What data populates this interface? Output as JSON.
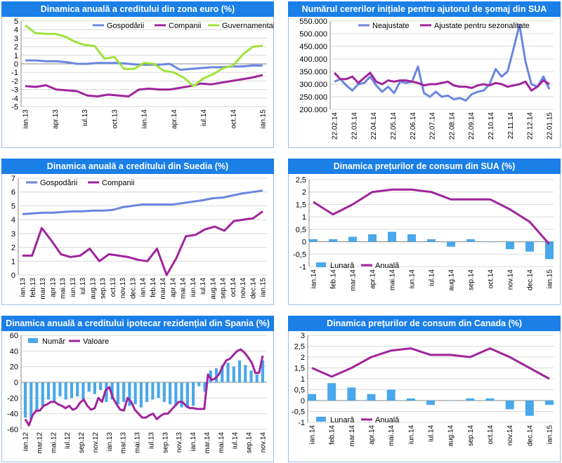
{
  "chart_data": [
    {
      "id": "c1",
      "type": "line",
      "title": "Dinamica anuală a creditului din zona euro (%)",
      "ylim": [
        -5,
        5
      ],
      "ystep": 1,
      "xlabels": [
        "ian.13",
        "apr.13",
        "iul.13",
        "oct.13",
        "ian.14",
        "apr.14",
        "iul.14",
        "oct.14",
        "ian.15"
      ],
      "legend_position": "top-right",
      "series": [
        {
          "name": "Gospodării",
          "color": "#6a86e0",
          "values": [
            0.4,
            0.4,
            0.3,
            0.3,
            0.2,
            0.0,
            0.0,
            0.1,
            0.1,
            0.1,
            0.0,
            -0.1,
            -0.1,
            -0.1,
            0.0,
            -0.7,
            -0.6,
            -0.5,
            -0.4,
            -0.4,
            -0.3,
            -0.3,
            -0.2,
            -0.2
          ]
        },
        {
          "name": "Companii",
          "color": "#a0249c",
          "values": [
            -2.6,
            -2.7,
            -2.5,
            -3.0,
            -3.1,
            -3.2,
            -3.7,
            -3.8,
            -3.6,
            -3.7,
            -3.8,
            -3.0,
            -2.9,
            -3.0,
            -3.0,
            -2.8,
            -2.6,
            -2.3,
            -2.4,
            -2.2,
            -2.0,
            -1.8,
            -1.6,
            -1.3
          ]
        },
        {
          "name": "Guvernamental",
          "color": "#9ee23c",
          "values": [
            4.5,
            3.6,
            3.5,
            3.5,
            3.2,
            2.6,
            2.2,
            2.1,
            0.6,
            0.8,
            -0.6,
            -0.6,
            0.1,
            0.0,
            -0.8,
            -1.0,
            -1.6,
            -2.6,
            -1.7,
            -1.2,
            -0.5,
            -0.2,
            1.1,
            2.0,
            2.1
          ]
        }
      ]
    },
    {
      "id": "c2",
      "type": "line",
      "title": "Numărul cererilor inițiale pentru ajutorul de șomaj din SUA",
      "ylim": [
        200000,
        550000
      ],
      "ystep": 50000,
      "ytick_labels": [
        "200.000",
        "250.000",
        "300.000",
        "350.000",
        "400.000",
        "450.000",
        "500.000",
        "550.000"
      ],
      "xlabels": [
        "22.02.14",
        "22.03.14",
        "22.04.14",
        "22.05.14",
        "22.06.14",
        "22.07.14",
        "22.08.14",
        "22.09.14",
        "22.10.14",
        "22.11.14",
        "22.12.14",
        "22.01.15"
      ],
      "legend_position": "top-right",
      "series": [
        {
          "name": "Neajustate",
          "color": "#6a86e0",
          "values": [
            310000,
            320000,
            295000,
            275000,
            300000,
            305000,
            330000,
            295000,
            270000,
            290000,
            265000,
            310000,
            305000,
            310000,
            370000,
            265000,
            250000,
            270000,
            250000,
            255000,
            240000,
            245000,
            235000,
            260000,
            270000,
            275000,
            300000,
            360000,
            330000,
            350000,
            440000,
            535000,
            390000,
            300000,
            290000,
            330000,
            280000
          ]
        },
        {
          "name": "Ajustate pentru sezonalitate",
          "color": "#a0249c",
          "values": [
            345000,
            320000,
            320000,
            330000,
            305000,
            325000,
            345000,
            310000,
            300000,
            315000,
            310000,
            315000,
            315000,
            310000,
            305000,
            295000,
            300000,
            300000,
            305000,
            310000,
            295000,
            290000,
            290000,
            285000,
            295000,
            300000,
            295000,
            305000,
            300000,
            290000,
            295000,
            300000,
            310000,
            275000,
            290000,
            315000,
            300000
          ]
        }
      ]
    },
    {
      "id": "c3",
      "type": "line",
      "title": "Dinamica anuală a creditului din Suedia (%)",
      "ylim": [
        0,
        7
      ],
      "ystep": 1,
      "xlabels": [
        "ian.13",
        "feb.13",
        "mar.13",
        "apr.13",
        "mai.13",
        "iun.13",
        "iul.13",
        "aug.13",
        "sep.13",
        "oct.13",
        "nov.13",
        "dec.13",
        "ian.14",
        "feb.14",
        "mar.14",
        "apr.14",
        "mai.14",
        "iun.14",
        "iul.14",
        "aug.14",
        "sep.14",
        "oct.14",
        "nov.14",
        "dec.14",
        "ian.15"
      ],
      "legend_position": "top-left",
      "series": [
        {
          "name": "Gospodării",
          "color": "#6a86e0",
          "values": [
            4.4,
            4.45,
            4.5,
            4.5,
            4.55,
            4.6,
            4.6,
            4.65,
            4.65,
            4.7,
            4.9,
            5.0,
            5.1,
            5.1,
            5.1,
            5.1,
            5.2,
            5.3,
            5.4,
            5.55,
            5.6,
            5.75,
            5.9,
            6.0,
            6.1
          ]
        },
        {
          "name": "Companii",
          "color": "#a0249c",
          "values": [
            1.4,
            1.4,
            3.4,
            2.5,
            1.5,
            1.3,
            1.4,
            1.9,
            1.0,
            1.5,
            1.4,
            1.3,
            1.1,
            1.0,
            1.9,
            0.0,
            1.2,
            2.8,
            2.9,
            3.3,
            3.5,
            3.2,
            3.9,
            4.0,
            4.1,
            4.6
          ]
        }
      ]
    },
    {
      "id": "c4",
      "type": "bar+line",
      "title": "Dinamica prețurilor de consum din SUA (%)",
      "ylim": [
        -1,
        2.5
      ],
      "ystep": 0.5,
      "ytick_labels": [
        "-1",
        "-0,5",
        "0",
        "0,5",
        "1",
        "1,5",
        "2",
        "2,5"
      ],
      "xlabels": [
        "ian.14",
        "feb.14",
        "mar.14",
        "apr.14",
        "mai.14",
        "iun.14",
        "iul.14",
        "aug.14",
        "sep.14",
        "oct.14",
        "nov.14",
        "dec.14",
        "ian.15"
      ],
      "legend_position": "bottom-left",
      "series": [
        {
          "name": "Lunară",
          "color": "#4aa8ea",
          "kind": "bar",
          "values": [
            0.1,
            0.1,
            0.2,
            0.3,
            0.4,
            0.3,
            0.1,
            -0.2,
            0.1,
            0.0,
            -0.3,
            -0.4,
            -0.7
          ]
        },
        {
          "name": "Anuală",
          "color": "#a0249c",
          "kind": "line",
          "values": [
            1.6,
            1.1,
            1.5,
            2.0,
            2.1,
            2.1,
            2.0,
            1.7,
            1.7,
            1.7,
            1.3,
            0.8,
            -0.1
          ]
        }
      ]
    },
    {
      "id": "c5",
      "type": "bar+line",
      "title": "Dinamica anuală a creditului ipotecar rezidențial din Spania (%)",
      "ylim": [
        -60,
        60
      ],
      "ystep": 20,
      "xlabels": [
        "ian.12",
        "mar.12",
        "mai.12",
        "iul.12",
        "sep.12",
        "nov.12",
        "ian.13",
        "mar.13",
        "mai.13",
        "iul.13",
        "sep.13",
        "nov.13",
        "ian.14",
        "mar.14",
        "mai.14",
        "iul.14",
        "sep.14",
        "nov.14"
      ],
      "legend_position": "top-left",
      "series": [
        {
          "name": "Număr",
          "color": "#4aa8ea",
          "kind": "bar",
          "values": [
            -45,
            -47,
            -38,
            -30,
            -22,
            -25,
            -18,
            -22,
            -20,
            -18,
            -22,
            -12,
            -15,
            -10,
            -25,
            -22,
            -28,
            -25,
            -30,
            -28,
            -32,
            -25,
            -22,
            -20,
            -25,
            -28,
            -30,
            -32,
            -33,
            -30,
            -5,
            -12,
            15,
            18,
            22,
            25,
            20,
            28,
            22,
            15,
            10,
            28
          ]
        },
        {
          "name": "Valoare",
          "color": "#a0249c",
          "kind": "line",
          "values": [
            -47,
            -55,
            -42,
            -36,
            -36,
            -30,
            -28,
            -25,
            -25,
            -28,
            -30,
            -33,
            -30,
            -35,
            -33,
            -26,
            -22,
            -30,
            -35,
            -33,
            -20,
            -25,
            -10,
            -6,
            -20,
            -28,
            -35,
            -36,
            -20,
            -25,
            -35,
            -40,
            -45,
            -45,
            -42,
            -40,
            -47,
            -43,
            -40,
            -40,
            -35,
            -30,
            -25,
            -25,
            -30,
            -33,
            -33,
            -34,
            -34,
            -34,
            10,
            3,
            5,
            10,
            20,
            28,
            30,
            35,
            40,
            42,
            38,
            32,
            25,
            12,
            12,
            34
          ]
        }
      ]
    },
    {
      "id": "c6",
      "type": "bar+line",
      "title": "Dinamica prețurilor de consum din Canada (%)",
      "ylim": [
        -1,
        3
      ],
      "ystep": 0.5,
      "ytick_labels": [
        "-1",
        "-0,5",
        "0",
        "0,5",
        "1",
        "1,5",
        "2",
        "2,5",
        "3"
      ],
      "xlabels": [
        "ian.14",
        "feb.14",
        "mar.14",
        "apr.14",
        "mai.14",
        "iun.14",
        "iul.14",
        "aug.14",
        "sep.14",
        "oct.14",
        "nov.14",
        "dec.14",
        "ian.15"
      ],
      "legend_position": "bottom-left",
      "series": [
        {
          "name": "Lunară",
          "color": "#4aa8ea",
          "kind": "bar",
          "values": [
            0.3,
            0.8,
            0.6,
            0.3,
            0.5,
            0.1,
            -0.2,
            0.0,
            0.1,
            0.1,
            -0.4,
            -0.7,
            -0.2
          ]
        },
        {
          "name": "Anuală",
          "color": "#a0249c",
          "kind": "line",
          "values": [
            1.5,
            1.1,
            1.5,
            2.0,
            2.3,
            2.4,
            2.1,
            2.1,
            2.0,
            2.4,
            2.0,
            1.5,
            1.0
          ]
        }
      ]
    }
  ]
}
